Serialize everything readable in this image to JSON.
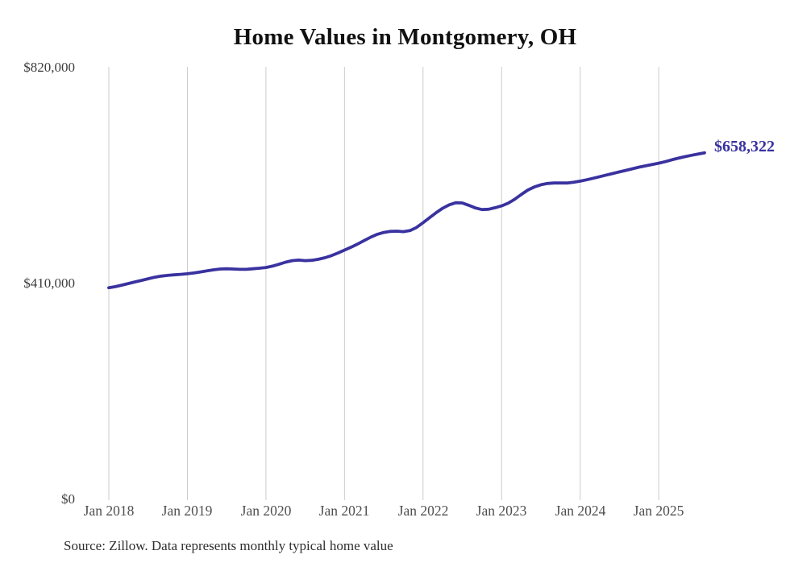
{
  "chart_data": {
    "type": "line",
    "title": "Home Values in Montgomery, OH",
    "series_name": "Monthly typical home value",
    "line_color": "#39329f",
    "grid_color": "#cccccc",
    "grid": "vertical-only",
    "legend_position": "none",
    "ylim": [
      0,
      820000
    ],
    "y_ticks": [
      {
        "label": "$0",
        "value": 0
      },
      {
        "label": "$410,000",
        "value": 410000
      },
      {
        "label": "$820,000",
        "value": 820000
      }
    ],
    "x_ticks": [
      "Jan 2018",
      "Jan 2019",
      "Jan 2020",
      "Jan 2021",
      "Jan 2022",
      "Jan 2023",
      "Jan 2024",
      "Jan 2025"
    ],
    "end_label": "$658,322",
    "end_value": 658322,
    "x": [
      "Jan 2018",
      "Feb 2018",
      "Mar 2018",
      "Apr 2018",
      "May 2018",
      "Jun 2018",
      "Jul 2018",
      "Aug 2018",
      "Sep 2018",
      "Oct 2018",
      "Nov 2018",
      "Dec 2018",
      "Jan 2019",
      "Feb 2019",
      "Mar 2019",
      "Apr 2019",
      "May 2019",
      "Jun 2019",
      "Jul 2019",
      "Aug 2019",
      "Sep 2019",
      "Oct 2019",
      "Nov 2019",
      "Dec 2019",
      "Jan 2020",
      "Feb 2020",
      "Mar 2020",
      "Apr 2020",
      "May 2020",
      "Jun 2020",
      "Jul 2020",
      "Aug 2020",
      "Sep 2020",
      "Oct 2020",
      "Nov 2020",
      "Dec 2020",
      "Jan 2021",
      "Feb 2021",
      "Mar 2021",
      "Apr 2021",
      "May 2021",
      "Jun 2021",
      "Jul 2021",
      "Aug 2021",
      "Sep 2021",
      "Oct 2021",
      "Nov 2021",
      "Dec 2021",
      "Jan 2022",
      "Feb 2022",
      "Mar 2022",
      "Apr 2022",
      "May 2022",
      "Jun 2022",
      "Jul 2022",
      "Aug 2022",
      "Sep 2022",
      "Oct 2022",
      "Nov 2022",
      "Dec 2022",
      "Jan 2023",
      "Feb 2023",
      "Mar 2023",
      "Apr 2023",
      "May 2023",
      "Jun 2023",
      "Jul 2023",
      "Aug 2023",
      "Sep 2023",
      "Oct 2023",
      "Nov 2023",
      "Dec 2023",
      "Jan 2024",
      "Feb 2024",
      "Mar 2024",
      "Apr 2024",
      "May 2024",
      "Jun 2024",
      "Jul 2024",
      "Aug 2024",
      "Sep 2024",
      "Oct 2024",
      "Nov 2024",
      "Dec 2024",
      "Jan 2025",
      "Feb 2025",
      "Mar 2025",
      "Apr 2025",
      "May 2025",
      "Jun 2025",
      "Jul 2025",
      "Aug 2025"
    ],
    "values": [
      402000,
      404000,
      407000,
      410000,
      413000,
      416000,
      419000,
      422000,
      424000,
      425500,
      426500,
      427500,
      428500,
      430000,
      432000,
      434000,
      436000,
      437500,
      438000,
      437500,
      437000,
      437000,
      438000,
      439000,
      440500,
      443000,
      446500,
      450500,
      453500,
      454500,
      453500,
      454000,
      456000,
      459000,
      463000,
      468000,
      473500,
      479000,
      485000,
      491500,
      498000,
      503500,
      507000,
      509000,
      509500,
      508500,
      510500,
      516500,
      525500,
      535000,
      544500,
      553000,
      559500,
      563500,
      563000,
      558500,
      553500,
      550500,
      551000,
      554000,
      557500,
      562500,
      570000,
      579000,
      587500,
      593500,
      597500,
      600000,
      601000,
      601000,
      601000,
      602500,
      604500,
      607000,
      610000,
      613000,
      616000,
      619000,
      622000,
      625000,
      628000,
      631000,
      633500,
      636000,
      638500,
      641500,
      645000,
      648000,
      651000,
      653500,
      656000,
      658322
    ]
  },
  "source_note": "Source: Zillow. Data represents monthly typical home value"
}
